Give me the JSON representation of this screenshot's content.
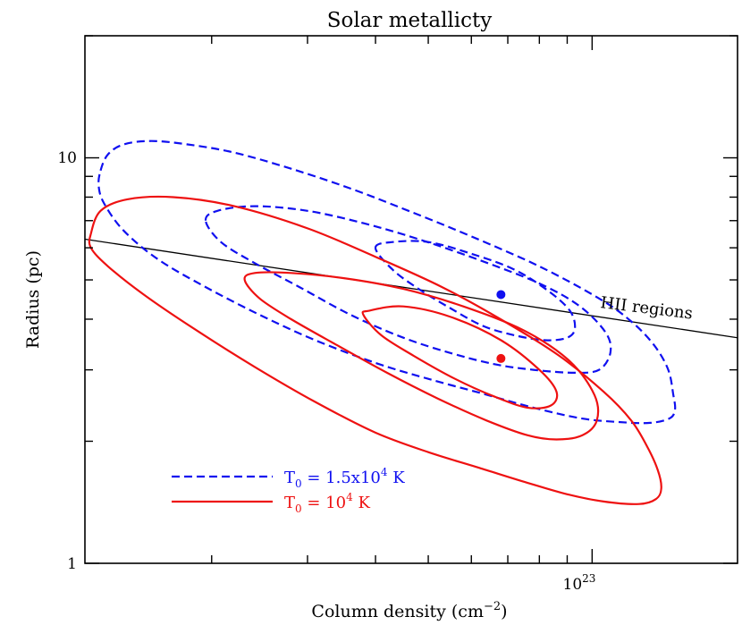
{
  "chart_data": {
    "type": "line",
    "title": "Solar metallicty",
    "xlabel": "Column density (cm",
    "xlabel_exponent": "−2",
    "xlabel_close": ")",
    "ylabel": "Radius (pc)",
    "xscale": "log",
    "yscale": "log",
    "xlim": [
      1.17e+22,
      1.85e+23
    ],
    "ylim": [
      1,
      20
    ],
    "x_tick_label": {
      "mantissa": "10",
      "exponent": "23",
      "value": 1e+23
    },
    "y_tick_labels": [
      {
        "label": "10",
        "value": 10
      },
      {
        "label": "1",
        "value": 1
      }
    ],
    "grid": false,
    "legend_position": "bottom-left",
    "colors": {
      "blue": "#1010f0",
      "red": "#ee1111",
      "black": "#000000"
    },
    "reference_line": {
      "label": "HII regions",
      "points": [
        [
          1.17e+22,
          6.3
        ],
        [
          1.85e+23,
          3.6
        ]
      ]
    },
    "series": [
      {
        "name": "T",
        "legend_subscript": "0",
        "legend_text": " = 1.5x10",
        "legend_exponent": "4",
        "legend_unit": " K",
        "color": "#1010f0",
        "dash": "dashed",
        "best_fit": [
          6.8e+22,
          4.6
        ],
        "contours": [
          [
            [
              1.25e+22,
              9.3
            ],
            [
              1.29e+22,
              10.2
            ],
            [
              1.38e+22,
              10.8
            ],
            [
              1.55e+22,
              11.0
            ],
            [
              1.8e+22,
              10.8
            ],
            [
              2.2e+22,
              10.3
            ],
            [
              2.8e+22,
              9.4
            ],
            [
              3.6e+22,
              8.4
            ],
            [
              4.6e+22,
              7.4
            ],
            [
              6e+22,
              6.4
            ],
            [
              8e+22,
              5.4
            ],
            [
              1.03e+23,
              4.5
            ],
            [
              1.18e+23,
              3.95
            ],
            [
              1.3e+23,
              3.45
            ],
            [
              1.38e+23,
              3.0
            ],
            [
              1.41e+23,
              2.6
            ],
            [
              1.42e+23,
              2.4
            ],
            [
              1.39e+23,
              2.28
            ],
            [
              1.28e+23,
              2.22
            ],
            [
              1.12e+23,
              2.23
            ],
            [
              9.5e+22,
              2.28
            ],
            [
              7.8e+22,
              2.42
            ],
            [
              6.3e+22,
              2.62
            ],
            [
              5e+22,
              2.85
            ],
            [
              4e+22,
              3.12
            ],
            [
              3.1e+22,
              3.55
            ],
            [
              2.45e+22,
              4.1
            ],
            [
              1.95e+22,
              4.8
            ],
            [
              1.6e+22,
              5.6
            ],
            [
              1.38e+22,
              6.6
            ],
            [
              1.27e+22,
              7.7
            ],
            [
              1.24e+22,
              8.5
            ],
            [
              1.25e+22,
              9.3
            ]
          ],
          [
            [
              1.95e+22,
              7.0
            ],
            [
              2.05e+22,
              7.4
            ],
            [
              2.4e+22,
              7.6
            ],
            [
              3e+22,
              7.4
            ],
            [
              3.8e+22,
              6.9
            ],
            [
              4.8e+22,
              6.3
            ],
            [
              6.2e+22,
              5.6
            ],
            [
              8e+22,
              4.9
            ],
            [
              9.5e+22,
              4.3
            ],
            [
              1.06e+23,
              3.7
            ],
            [
              1.08e+23,
              3.3
            ],
            [
              1.03e+23,
              3.0
            ],
            [
              9.3e+22,
              2.95
            ],
            [
              7.8e+22,
              3.0
            ],
            [
              6.6e+22,
              3.1
            ],
            [
              5.5e+22,
              3.3
            ],
            [
              4.5e+22,
              3.6
            ],
            [
              3.6e+22,
              4.1
            ],
            [
              2.9e+22,
              4.8
            ],
            [
              2.4e+22,
              5.5
            ],
            [
              2.08e+22,
              6.2
            ],
            [
              1.95e+22,
              7.0
            ]
          ],
          [
            [
              4e+22,
              6.0
            ],
            [
              4.3e+22,
              6.2
            ],
            [
              5e+22,
              6.2
            ],
            [
              6e+22,
              5.8
            ],
            [
              7.2e+22,
              5.3
            ],
            [
              8.3e+22,
              4.7
            ],
            [
              9.1e+22,
              4.2
            ],
            [
              9.3e+22,
              3.8
            ],
            [
              9e+22,
              3.6
            ],
            [
              8.2e+22,
              3.55
            ],
            [
              7.2e+22,
              3.65
            ],
            [
              6.3e+22,
              3.85
            ],
            [
              5.5e+22,
              4.25
            ],
            [
              4.8e+22,
              4.75
            ],
            [
              4.3e+22,
              5.3
            ],
            [
              4e+22,
              6.0
            ]
          ]
        ]
      },
      {
        "name": "T",
        "legend_subscript": "0",
        "legend_text": " = 10",
        "legend_exponent": "4",
        "legend_unit": " K",
        "color": "#ee1111",
        "dash": "solid",
        "best_fit": [
          6.8e+22,
          3.2
        ],
        "contours": [
          [
            [
              1.2e+22,
              6.5
            ],
            [
              1.25e+22,
              7.4
            ],
            [
              1.4e+22,
              7.9
            ],
            [
              1.7e+22,
              8.0
            ],
            [
              2.2e+22,
              7.6
            ],
            [
              3e+22,
              6.7
            ],
            [
              4e+22,
              5.7
            ],
            [
              5.3e+22,
              4.8
            ],
            [
              6.9e+22,
              3.95
            ],
            [
              8.7e+22,
              3.25
            ],
            [
              1.05e+23,
              2.65
            ],
            [
              1.18e+23,
              2.25
            ],
            [
              1.26e+23,
              1.95
            ],
            [
              1.32e+23,
              1.7
            ],
            [
              1.34e+23,
              1.53
            ],
            [
              1.31e+23,
              1.44
            ],
            [
              1.22e+23,
              1.4
            ],
            [
              1.05e+23,
              1.42
            ],
            [
              9e+22,
              1.48
            ],
            [
              7.6e+22,
              1.58
            ],
            [
              6.2e+22,
              1.72
            ],
            [
              5e+22,
              1.88
            ],
            [
              4e+22,
              2.1
            ],
            [
              3.1e+22,
              2.5
            ],
            [
              2.4e+22,
              3.05
            ],
            [
              1.85e+22,
              3.8
            ],
            [
              1.5e+22,
              4.6
            ],
            [
              1.29e+22,
              5.4
            ],
            [
              1.2e+22,
              6.0
            ],
            [
              1.2e+22,
              6.5
            ]
          ],
          [
            [
              2.3e+22,
              5.0
            ],
            [
              2.4e+22,
              5.2
            ],
            [
              2.8e+22,
              5.2
            ],
            [
              3.5e+22,
              5.05
            ],
            [
              4.5e+22,
              4.75
            ],
            [
              5.8e+22,
              4.3
            ],
            [
              7.5e+22,
              3.75
            ],
            [
              9.1e+22,
              3.15
            ],
            [
              1.01e+23,
              2.6
            ],
            [
              1.02e+23,
              2.25
            ],
            [
              9.6e+22,
              2.07
            ],
            [
              8.6e+22,
              2.02
            ],
            [
              7.6e+22,
              2.07
            ],
            [
              6.4e+22,
              2.25
            ],
            [
              5.2e+22,
              2.55
            ],
            [
              4.2e+22,
              2.95
            ],
            [
              3.4e+22,
              3.45
            ],
            [
              2.8e+22,
              4.0
            ],
            [
              2.45e+22,
              4.5
            ],
            [
              2.3e+22,
              5.0
            ]
          ],
          [
            [
              3.8e+22,
              4.1
            ],
            [
              3.9e+22,
              4.2
            ],
            [
              4.5e+22,
              4.3
            ],
            [
              5.5e+22,
              4.05
            ],
            [
              6.8e+22,
              3.55
            ],
            [
              8e+22,
              3.0
            ],
            [
              8.6e+22,
              2.65
            ],
            [
              8.4e+22,
              2.45
            ],
            [
              7.6e+22,
              2.42
            ],
            [
              6.6e+22,
              2.58
            ],
            [
              5.6e+22,
              2.85
            ],
            [
              4.7e+22,
              3.25
            ],
            [
              4.1e+22,
              3.65
            ],
            [
              3.8e+22,
              4.1
            ]
          ]
        ]
      }
    ]
  }
}
